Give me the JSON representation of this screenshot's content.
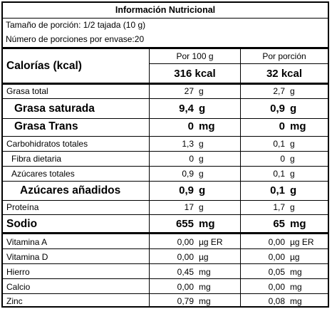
{
  "title": "Información Nutricional",
  "serving_size": "Tamaño de porción: 1/2 tajada (10 g)",
  "servings_per_container": "Número de porciones por envase:20",
  "calories_label": "Calorías (kcal)",
  "col_headers": {
    "per100": "Por 100 g",
    "per_serving": "Por porción"
  },
  "calories": {
    "per100": "316 kcal",
    "per_serving": "32 kcal"
  },
  "rows": [
    {
      "label": "Grasa total",
      "v100": "27",
      "u100": "g",
      "vp": "2,7",
      "up": "g"
    },
    {
      "label": "Grasa saturada",
      "v100": "9,4",
      "u100": "g",
      "vp": "0,9",
      "up": "g"
    },
    {
      "label": "Grasa Trans",
      "v100": "0",
      "u100": "mg",
      "vp": "0",
      "up": "mg"
    },
    {
      "label": "Carbohidratos totales",
      "v100": "1,3",
      "u100": "g",
      "vp": "0,1",
      "up": "g"
    },
    {
      "label": "Fibra dietaria",
      "v100": "0",
      "u100": "g",
      "vp": "0",
      "up": "g"
    },
    {
      "label": "Azúcares totales",
      "v100": "0,9",
      "u100": "g",
      "vp": "0,1",
      "up": "g"
    },
    {
      "label": "Azúcares añadidos",
      "v100": "0,9",
      "u100": "g",
      "vp": "0,1",
      "up": "g"
    },
    {
      "label": "Proteína",
      "v100": "17",
      "u100": "g",
      "vp": "1,7",
      "up": "g"
    },
    {
      "label": "Sodio",
      "v100": "655",
      "u100": "mg",
      "vp": "65",
      "up": "mg"
    },
    {
      "label": "Vitamina A",
      "v100": "0,00",
      "u100": "µg ER",
      "vp": "0,00",
      "up": "µg ER"
    },
    {
      "label": "Vitamina D",
      "v100": "0,00",
      "u100": "µg",
      "vp": "0,00",
      "up": "µg"
    },
    {
      "label": "Hierro",
      "v100": "0,45",
      "u100": "mg",
      "vp": "0,05",
      "up": "mg"
    },
    {
      "label": "Calcio",
      "v100": "0,00",
      "u100": "mg",
      "vp": "0,00",
      "up": "mg"
    },
    {
      "label": "Zinc",
      "v100": "0,79",
      "u100": "mg",
      "vp": "0,08",
      "up": "mg"
    }
  ]
}
